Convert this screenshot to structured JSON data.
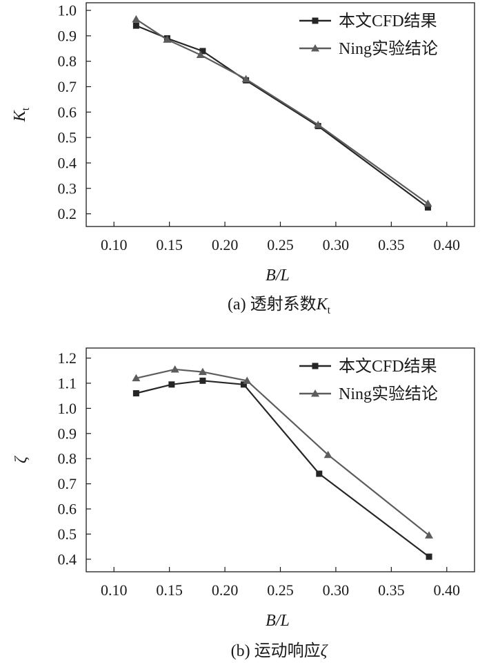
{
  "chart_data": [
    {
      "type": "line",
      "title": "",
      "caption_prefix": "(a) 透射系数",
      "caption_symbol": "K",
      "caption_subscript": "t",
      "xlabel": "B/L",
      "ylabel": "K",
      "ylabel_subscript": "t",
      "xlim": [
        0.075,
        0.425
      ],
      "ylim": [
        0.15,
        1.03
      ],
      "xticks": [
        0.1,
        0.15,
        0.2,
        0.25,
        0.3,
        0.35,
        0.4
      ],
      "xtick_labels": [
        "0.10",
        "0.15",
        "0.20",
        "0.25",
        "0.30",
        "0.35",
        "0.40"
      ],
      "yticks": [
        0.2,
        0.3,
        0.4,
        0.5,
        0.6,
        0.7,
        0.8,
        0.9,
        1.0
      ],
      "ytick_labels": [
        "0.2",
        "0.3",
        "0.4",
        "0.5",
        "0.6",
        "0.7",
        "0.8",
        "0.9",
        "1.0"
      ],
      "legend_position": "top-right",
      "series": [
        {
          "name": "本文CFD结果",
          "marker": "square",
          "color": "#262626",
          "x": [
            0.12,
            0.148,
            0.18,
            0.219,
            0.284,
            0.383
          ],
          "y": [
            0.94,
            0.89,
            0.84,
            0.725,
            0.545,
            0.225
          ]
        },
        {
          "name": "Ning实验结论",
          "marker": "triangle",
          "color": "#5c5c5c",
          "x": [
            0.12,
            0.148,
            0.178,
            0.219,
            0.284,
            0.383
          ],
          "y": [
            0.965,
            0.885,
            0.825,
            0.73,
            0.55,
            0.24
          ]
        }
      ]
    },
    {
      "type": "line",
      "title": "",
      "caption_prefix": "(b) 运动响应",
      "caption_symbol": "ζ",
      "caption_subscript": "",
      "xlabel": "B/L",
      "ylabel": "ζ",
      "ylabel_subscript": "",
      "xlim": [
        0.075,
        0.425
      ],
      "ylim": [
        0.35,
        1.24
      ],
      "xticks": [
        0.1,
        0.15,
        0.2,
        0.25,
        0.3,
        0.35,
        0.4
      ],
      "xtick_labels": [
        "0.10",
        "0.15",
        "0.20",
        "0.25",
        "0.30",
        "0.35",
        "0.40"
      ],
      "yticks": [
        0.4,
        0.5,
        0.6,
        0.7,
        0.8,
        0.9,
        1.0,
        1.1,
        1.2
      ],
      "ytick_labels": [
        "0.4",
        "0.5",
        "0.6",
        "0.7",
        "0.8",
        "0.9",
        "1.0",
        "1.1",
        "1.2"
      ],
      "legend_position": "top-right",
      "series": [
        {
          "name": "本文CFD结果",
          "marker": "square",
          "color": "#262626",
          "x": [
            0.12,
            0.152,
            0.18,
            0.217,
            0.285,
            0.384
          ],
          "y": [
            1.06,
            1.095,
            1.11,
            1.095,
            0.74,
            0.41
          ]
        },
        {
          "name": "Ning实验结论",
          "marker": "triangle",
          "color": "#5c5c5c",
          "x": [
            0.12,
            0.155,
            0.18,
            0.22,
            0.293,
            0.384
          ],
          "y": [
            1.12,
            1.155,
            1.145,
            1.11,
            0.815,
            0.495
          ]
        }
      ]
    }
  ]
}
